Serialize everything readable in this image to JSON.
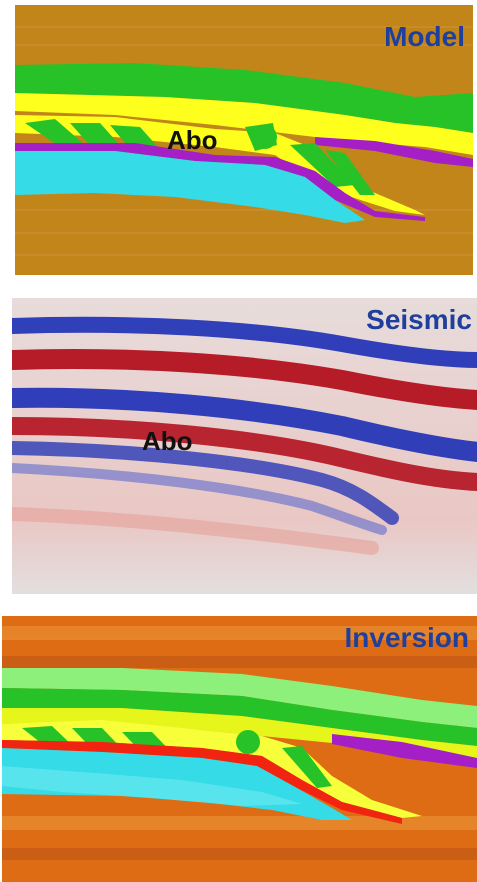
{
  "panels": [
    {
      "id": "model",
      "title": "Model",
      "annotation": "Abo"
    },
    {
      "id": "seismic",
      "title": "Seismic",
      "annotation": "Abo"
    },
    {
      "id": "inversion",
      "title": "Inversion",
      "annotation": ""
    }
  ],
  "colors": {
    "title_text": "#1f3f9c",
    "model_background": "#c2851a",
    "green_layer": "#27c227",
    "yellow_layer": "#ffff1e",
    "purple_layer": "#a41fc6",
    "cyan_layer": "#35dbe6",
    "seismic_red": "#b3121f",
    "seismic_blue": "#1c2fb6",
    "seismic_background": "#e7dcdb",
    "inversion_orange": "#dd6c14",
    "inversion_red": "#f02410"
  }
}
